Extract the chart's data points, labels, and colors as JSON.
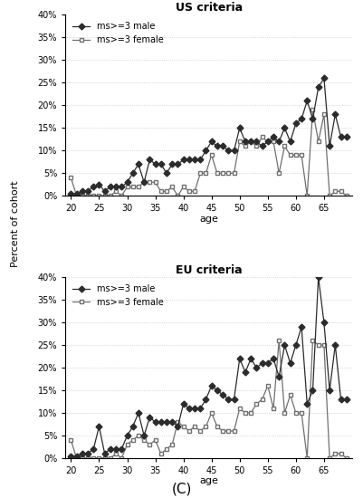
{
  "ages": [
    20,
    21,
    22,
    23,
    24,
    25,
    26,
    27,
    28,
    29,
    30,
    31,
    32,
    33,
    34,
    35,
    36,
    37,
    38,
    39,
    40,
    41,
    42,
    43,
    44,
    45,
    46,
    47,
    48,
    49,
    50,
    51,
    52,
    53,
    54,
    55,
    56,
    57,
    58,
    59,
    60,
    61,
    62,
    63,
    64,
    65,
    66,
    67,
    68,
    69
  ],
  "us_male": [
    0.5,
    0.5,
    1,
    1,
    2,
    2.5,
    1,
    2,
    2,
    2,
    3,
    5,
    7,
    3,
    8,
    7,
    7,
    5,
    7,
    7,
    8,
    8,
    8,
    8,
    10,
    12,
    11,
    11,
    10,
    10,
    15,
    12,
    12,
    12,
    11,
    12,
    13,
    12,
    15,
    12,
    16,
    17,
    21,
    17,
    24,
    26,
    11,
    18,
    13,
    13
  ],
  "us_female": [
    4,
    0,
    0,
    0,
    0,
    0,
    0,
    0,
    1,
    0,
    2,
    2,
    2,
    3,
    3,
    3,
    1,
    1,
    2,
    0,
    2,
    1,
    1,
    5,
    5,
    9,
    5,
    5,
    5,
    5,
    12,
    11,
    12,
    11,
    13,
    12,
    12,
    5,
    11,
    9,
    9,
    9,
    0,
    19,
    12,
    18,
    0,
    1,
    1,
    0
  ],
  "eu_male": [
    0.5,
    0.5,
    1,
    1,
    2,
    7,
    1,
    2,
    2,
    2,
    5,
    7,
    10,
    5,
    9,
    8,
    8,
    8,
    8,
    7,
    12,
    11,
    11,
    11,
    13,
    16,
    15,
    14,
    13,
    13,
    22,
    19,
    22,
    20,
    21,
    21,
    22,
    18,
    25,
    21,
    25,
    29,
    12,
    15,
    40,
    30,
    15,
    25,
    13,
    13
  ],
  "eu_female": [
    4,
    0,
    0,
    0,
    0,
    0,
    0,
    0,
    1,
    0,
    3,
    4,
    5,
    4,
    3,
    4,
    1,
    2,
    3,
    8,
    7,
    6,
    7,
    6,
    7,
    10,
    7,
    6,
    6,
    6,
    11,
    10,
    10,
    12,
    13,
    16,
    11,
    26,
    10,
    14,
    10,
    10,
    0,
    26,
    25,
    25,
    0,
    1,
    1,
    0
  ],
  "title_us": "US criteria",
  "title_eu": "EU criteria",
  "xlabel": "age",
  "ylabel": "Percent of cohort",
  "label_male": "ms>=3 male",
  "label_female": "ms>=3 female",
  "caption": "(C)",
  "ylim": [
    0,
    40
  ],
  "yticks": [
    0,
    5,
    10,
    15,
    20,
    25,
    30,
    35,
    40
  ],
  "xticks": [
    20,
    25,
    30,
    35,
    40,
    45,
    50,
    55,
    60,
    65
  ],
  "color_male": "#2b2b2b",
  "color_female": "#707070",
  "bg_color": "#ffffff"
}
